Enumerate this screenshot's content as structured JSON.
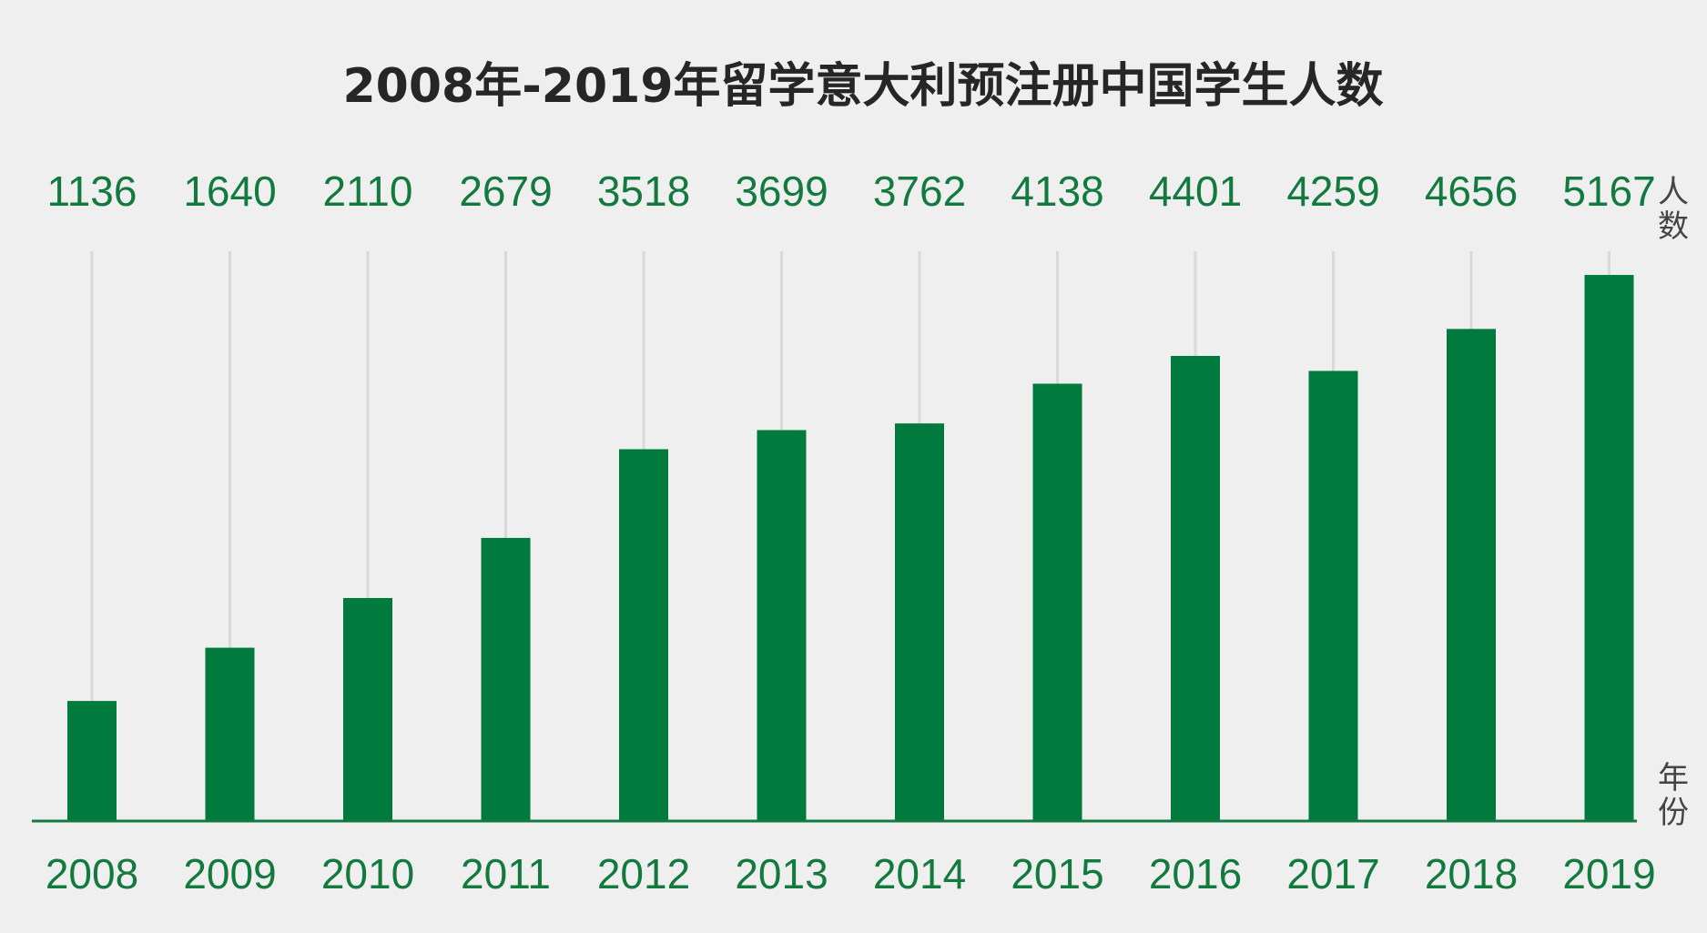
{
  "colors": {
    "bar": "#007a3d",
    "value_text": "#137a3f",
    "guide": "#d9d9d9",
    "axis": "#137a3f",
    "background": "#f0efef"
  },
  "chart_data": {
    "type": "bar",
    "title": "2008年-2019年留学意大利预注册中国学生人数",
    "categories": [
      "2008",
      "2009",
      "2010",
      "2011",
      "2012",
      "2013",
      "2014",
      "2015",
      "2016",
      "2017",
      "2018",
      "2019"
    ],
    "values": [
      1136,
      1640,
      2110,
      2679,
      3518,
      3699,
      3762,
      4138,
      4401,
      4259,
      4656,
      5167
    ],
    "value_labels": [
      "1136",
      "1640",
      "2110",
      "2679",
      "3518",
      "3699",
      "3762",
      "4138",
      "4401",
      "4259",
      "4656",
      "5167"
    ],
    "y_unit_label_chars": [
      "人",
      "数"
    ],
    "x_unit_label_chars": [
      "年",
      "份"
    ],
    "ylim": [
      0,
      5400
    ],
    "grid": false,
    "legend": "none"
  }
}
